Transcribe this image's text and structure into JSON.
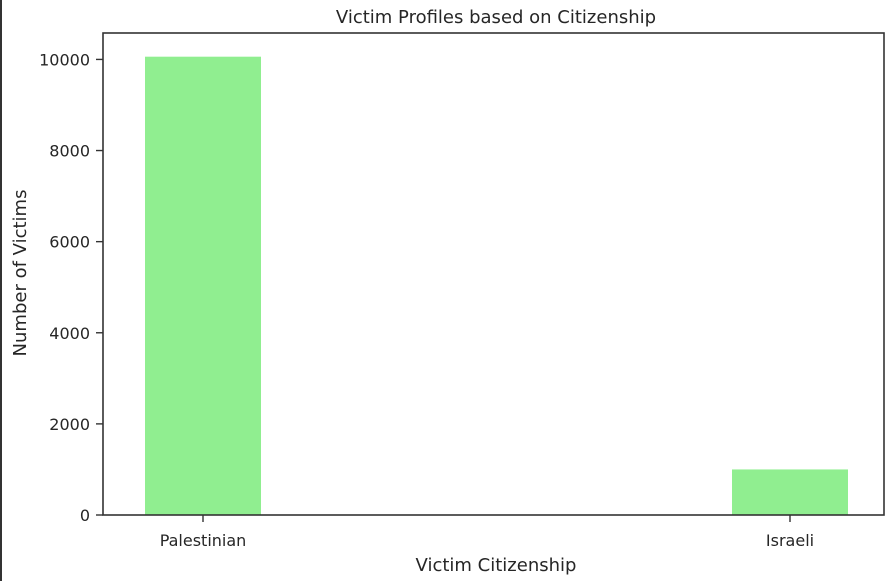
{
  "chart_data": {
    "type": "bar",
    "title": "Victim Profiles based on Citizenship",
    "xlabel": "Victim Citizenship",
    "ylabel": "Number of Victims",
    "categories": [
      "Palestinian",
      "Israeli"
    ],
    "values": [
      10060,
      1000
    ],
    "ylim": [
      0,
      10580
    ],
    "yticks": [
      0,
      2000,
      4000,
      6000,
      8000,
      10000
    ],
    "bar_color": "#90ee90",
    "grid": false,
    "legend": "none"
  }
}
